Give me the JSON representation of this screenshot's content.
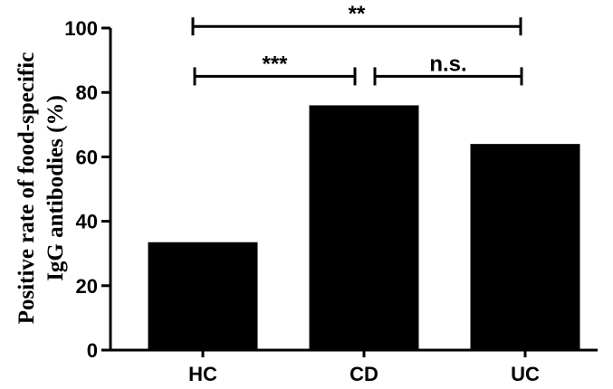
{
  "chart_data": {
    "type": "bar",
    "categories": [
      "HC",
      "CD",
      "UC"
    ],
    "values": [
      33.5,
      76,
      64
    ],
    "ylabel_lines": [
      "Positive rate of food-specific",
      "IgG antibodies (%)"
    ],
    "xlabel": "",
    "ylim": [
      0,
      100
    ],
    "yticks": [
      "0",
      "20",
      "40",
      "60",
      "80",
      "100"
    ],
    "grid": false,
    "bar_color": "#000000",
    "significance": [
      {
        "from": "HC",
        "to": "UC",
        "level": 100.5,
        "label": "**"
      },
      {
        "from": "HC",
        "to": "CD",
        "level": 85,
        "label": "***"
      },
      {
        "from": "CD",
        "to": "UC",
        "level": 85,
        "label": "n.s."
      }
    ]
  }
}
